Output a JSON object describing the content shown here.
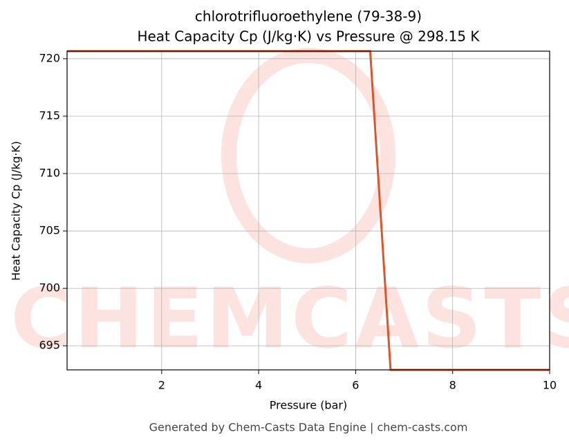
{
  "chart_data": {
    "type": "line",
    "title": "chlorotrifluoroethylene (79-38-9)",
    "subtitle": "Heat Capacity Cp (J/kg·K) vs Pressure @ 298.15 K",
    "xlabel": "Pressure (bar)",
    "ylabel": "Heat Capacity Cp (J/kg·K)",
    "footer": "Generated by Chem-Casts Data Engine | chem-casts.com",
    "watermark": "CHEMCASTS",
    "x": [
      0.05,
      6.3,
      6.72,
      10
    ],
    "series": [
      {
        "name": "Cp",
        "color": "#d9562b",
        "values": [
          720.66,
          720.66,
          692.9,
          692.9
        ]
      }
    ],
    "xlim": [
      0.05,
      10
    ],
    "ylim": [
      692.9,
      720.66
    ],
    "xticks": [
      2,
      4,
      6,
      8,
      10
    ],
    "yticks": [
      695,
      700,
      705,
      710,
      715,
      720
    ],
    "grid": true
  }
}
